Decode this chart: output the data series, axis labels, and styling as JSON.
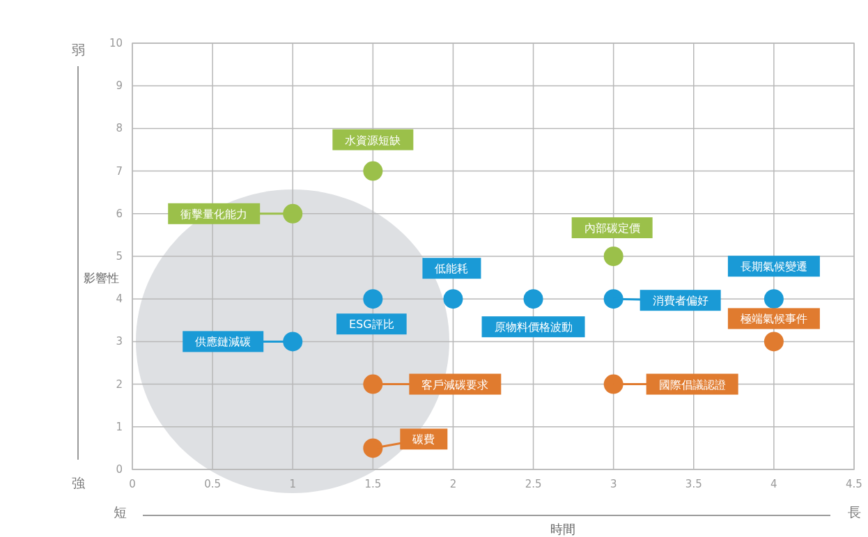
{
  "chart_data": {
    "type": "scatter",
    "xlabel": "時間",
    "ylabel": "影響性",
    "xlim": [
      0,
      4.5
    ],
    "xticks": [
      0,
      0.5,
      1,
      1.5,
      2,
      2.5,
      3,
      3.5,
      4,
      4.5
    ],
    "ylim": [
      0,
      10
    ],
    "yticks": [
      0,
      1,
      2,
      3,
      4,
      5,
      6,
      7,
      8,
      9,
      10
    ],
    "grid": true,
    "marker": "circle",
    "series": [
      {
        "color": "#9bc04a",
        "x": [
          1,
          1.5,
          3
        ],
        "values": [
          6,
          7,
          5
        ]
      },
      {
        "color": "#1a9ad6",
        "x": [
          1,
          1.5,
          2,
          2.5,
          3,
          4
        ],
        "values": [
          3,
          4,
          4,
          4,
          4,
          4
        ]
      },
      {
        "color": "#e07b2f",
        "x": [
          1.5,
          1.5,
          3,
          4
        ],
        "values": [
          2,
          0.5,
          2,
          3
        ]
      }
    ],
    "annotations": [
      {
        "text": "水資源短缺",
        "x": 1.5,
        "y": 7
      },
      {
        "text": "衝擊量化能力",
        "x": 1,
        "y": 6
      },
      {
        "text": "內部碳定價",
        "x": 3,
        "y": 5
      },
      {
        "text": "低能耗",
        "x": 2,
        "y": 4
      },
      {
        "text": "ESG評比",
        "x": 1.5,
        "y": 4
      },
      {
        "text": "原物料價格波動",
        "x": 2.5,
        "y": 4
      },
      {
        "text": "消費者偏好",
        "x": 3,
        "y": 4
      },
      {
        "text": "長期氣候變遷",
        "x": 4,
        "y": 4
      },
      {
        "text": "極端氣候事件",
        "x": 4,
        "y": 3
      },
      {
        "text": "供應鏈減碳",
        "x": 1,
        "y": 3
      },
      {
        "text": "客戶減碳要求",
        "x": 1.5,
        "y": 2
      },
      {
        "text": "碳費",
        "x": 1.5,
        "y": 0.5
      },
      {
        "text": "國際倡議認證",
        "x": 3,
        "y": 2
      },
      "弱",
      "強",
      "短",
      "長"
    ]
  }
}
